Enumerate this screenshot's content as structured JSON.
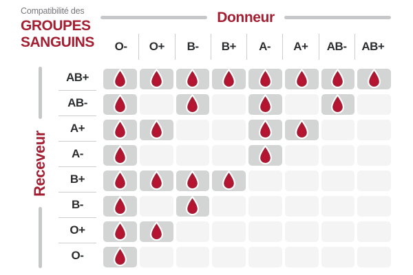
{
  "title": {
    "eyebrow": "Compatibilité des",
    "line1": "GROUPES",
    "line2": "SANGUINS"
  },
  "axes": {
    "donor": "Donneur",
    "receiver": "Receveur"
  },
  "donors": [
    "O-",
    "O+",
    "B-",
    "B+",
    "A-",
    "A+",
    "AB-",
    "AB+"
  ],
  "matrix": [
    {
      "receiver": "AB+",
      "cells": [
        1,
        1,
        1,
        1,
        1,
        1,
        1,
        1
      ]
    },
    {
      "receiver": "AB-",
      "cells": [
        1,
        0,
        1,
        0,
        1,
        0,
        1,
        0
      ]
    },
    {
      "receiver": "A+",
      "cells": [
        1,
        1,
        0,
        0,
        1,
        1,
        0,
        0
      ]
    },
    {
      "receiver": "A-",
      "cells": [
        1,
        0,
        0,
        0,
        1,
        0,
        0,
        0
      ]
    },
    {
      "receiver": "B+",
      "cells": [
        1,
        1,
        1,
        1,
        0,
        0,
        0,
        0
      ]
    },
    {
      "receiver": "B-",
      "cells": [
        1,
        0,
        1,
        0,
        0,
        0,
        0,
        0
      ]
    },
    {
      "receiver": "O+",
      "cells": [
        1,
        1,
        0,
        0,
        0,
        0,
        0,
        0
      ]
    },
    {
      "receiver": "O-",
      "cells": [
        1,
        0,
        0,
        0,
        0,
        0,
        0,
        0
      ]
    }
  ],
  "icons": {
    "compatible_marker": "blood-drop-icon"
  },
  "colors": {
    "accent_red": "#a41e32",
    "drop_red": "#a51a31",
    "title_gray": "#75767a",
    "label_dark": "#2b2c2e",
    "filled_cell_gray": "#d3d5d5",
    "empty_cell_gray": "#f3f4f3",
    "line_gray": "#c6c7c9"
  },
  "chart_data": {
    "type": "table",
    "title": "Compatibilité des GROUPES SANGUINS",
    "columns_axis_label": "Donneur",
    "rows_axis_label": "Receveur",
    "columns": [
      "O-",
      "O+",
      "B-",
      "B+",
      "A-",
      "A+",
      "AB-",
      "AB+"
    ],
    "rows": [
      "AB+",
      "AB-",
      "A+",
      "A-",
      "B+",
      "B-",
      "O+",
      "O-"
    ],
    "values": [
      [
        1,
        1,
        1,
        1,
        1,
        1,
        1,
        1
      ],
      [
        1,
        0,
        1,
        0,
        1,
        0,
        1,
        0
      ],
      [
        1,
        1,
        0,
        0,
        1,
        1,
        0,
        0
      ],
      [
        1,
        0,
        0,
        0,
        1,
        0,
        0,
        0
      ],
      [
        1,
        1,
        1,
        1,
        0,
        0,
        0,
        0
      ],
      [
        1,
        0,
        1,
        0,
        0,
        0,
        0,
        0
      ],
      [
        1,
        1,
        0,
        0,
        0,
        0,
        0,
        0
      ],
      [
        1,
        0,
        0,
        0,
        0,
        0,
        0,
        0
      ]
    ],
    "cell_meaning": "1 = compatible (blood drop shown on dark gray cell), 0 = not compatible (light gray empty cell)",
    "legend_position": "none",
    "grid": false
  }
}
